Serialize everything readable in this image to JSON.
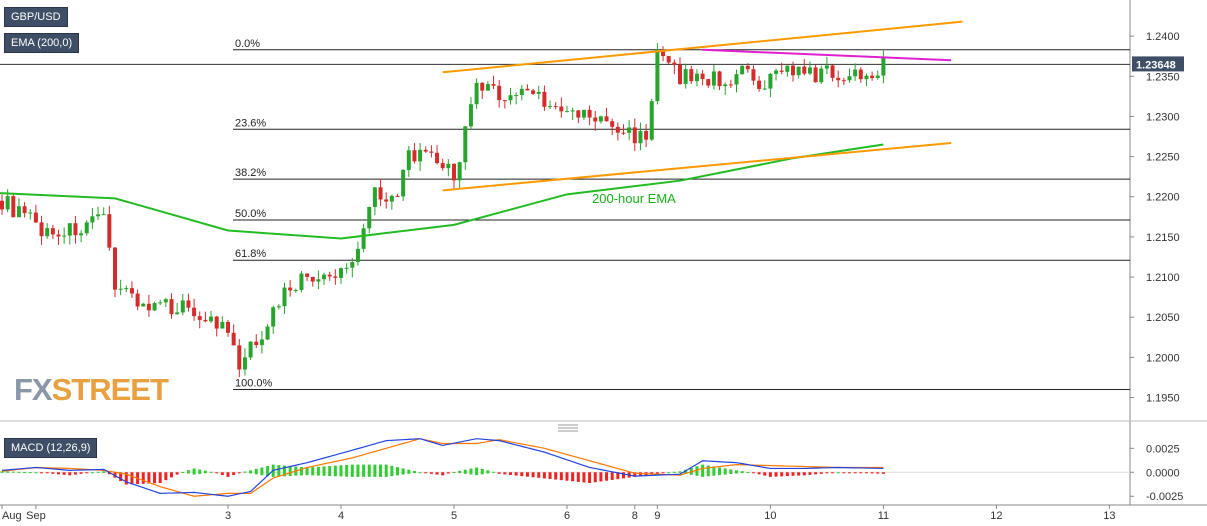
{
  "symbol_label": "GBP/USD",
  "indicator_label": "EMA (200,0)",
  "macd_label": "MACD (12,26,9)",
  "watermark": {
    "part1": "FX",
    "part2": "STREET"
  },
  "annotation": "200-hour EMA",
  "current_price": "1.23648",
  "colors": {
    "bull": "#26a42c",
    "bear": "#d42b2b",
    "ema": "#22bb22",
    "channel": "#ff9900",
    "resistance": "#e020d0",
    "macd_line": "#2244dd",
    "signal_line": "#ff7700",
    "hist_pos": "#33cc33",
    "hist_neg": "#ee2222"
  },
  "x_axis_labels": [
    "Aug",
    "Sep",
    "3",
    "4",
    "5",
    "6",
    "8",
    "9",
    "10",
    "11",
    "12",
    "13"
  ],
  "price_axis_labels": [
    "1.2400",
    "1.2350",
    "1.2300",
    "1.2250",
    "1.2200",
    "1.2150",
    "1.2100",
    "1.2050",
    "1.2000",
    "1.1950"
  ],
  "macd_axis_labels": [
    "0.0025",
    "0.0000",
    "-0.0025"
  ],
  "fib_levels": [
    {
      "label": "0.0%",
      "price": 1.2383
    },
    {
      "label": "23.6%",
      "price": 1.2284
    },
    {
      "label": "38.2%",
      "price": 1.2222
    },
    {
      "label": "50.0%",
      "price": 1.2171
    },
    {
      "label": "61.8%",
      "price": 1.2121
    },
    {
      "label": "100.0%",
      "price": 1.196
    }
  ],
  "chart_data": {
    "type": "candlestick",
    "title": "GBP/USD",
    "ylim": [
      1.1922,
      1.2445
    ],
    "macd_ylim": [
      -0.0031,
      0.0042
    ],
    "x_ticks": [
      {
        "label": "Aug",
        "x": 0
      },
      {
        "label": "Sep",
        "x": 3
      },
      {
        "label": "3",
        "x": 20
      },
      {
        "label": "4",
        "x": 30
      },
      {
        "label": "5",
        "x": 40
      },
      {
        "label": "6",
        "x": 50
      },
      {
        "label": "8",
        "x": 56
      },
      {
        "label": "9",
        "x": 58
      },
      {
        "label": "10",
        "x": 68
      },
      {
        "label": "11",
        "x": 78
      },
      {
        "label": "12",
        "x": 88
      },
      {
        "label": "13",
        "x": 98
      }
    ],
    "ohlc_anchors": [
      [
        0,
        1.2195
      ],
      [
        4,
        1.2155
      ],
      [
        7,
        1.216
      ],
      [
        9,
        1.217
      ],
      [
        10,
        1.2095
      ],
      [
        13,
        1.206
      ],
      [
        16,
        1.2065
      ],
      [
        18,
        1.205
      ],
      [
        20,
        1.203
      ],
      [
        21,
        1.1985
      ],
      [
        22,
        1.201
      ],
      [
        24,
        1.2055
      ],
      [
        25,
        1.2085
      ],
      [
        27,
        1.21
      ],
      [
        29,
        1.2095
      ],
      [
        31,
        1.212
      ],
      [
        32,
        1.2165
      ],
      [
        33,
        1.221
      ],
      [
        35,
        1.2195
      ],
      [
        36,
        1.2255
      ],
      [
        39,
        1.224
      ],
      [
        40,
        1.2225
      ],
      [
        42,
        1.2335
      ],
      [
        45,
        1.2325
      ],
      [
        47,
        1.2335
      ],
      [
        49,
        1.2305
      ],
      [
        52,
        1.23
      ],
      [
        55,
        1.228
      ],
      [
        57,
        1.2275
      ],
      [
        58,
        1.2375
      ],
      [
        60,
        1.235
      ],
      [
        62,
        1.2348
      ],
      [
        64,
        1.2345
      ],
      [
        66,
        1.2355
      ],
      [
        67,
        1.2325
      ],
      [
        69,
        1.2365
      ],
      [
        71,
        1.235
      ],
      [
        73,
        1.2355
      ],
      [
        75,
        1.235
      ],
      [
        77,
        1.2358
      ],
      [
        78,
        1.2365
      ]
    ],
    "ema_200": [
      [
        -1,
        1.2205
      ],
      [
        10,
        1.2198
      ],
      [
        20,
        1.2158
      ],
      [
        30,
        1.2148
      ],
      [
        40,
        1.2165
      ],
      [
        50,
        1.2203
      ],
      [
        60,
        1.222
      ],
      [
        70,
        1.2248
      ],
      [
        78,
        1.2265
      ]
    ],
    "channel_upper": [
      [
        39,
        1.2355
      ],
      [
        85,
        1.2418
      ]
    ],
    "channel_lower": [
      [
        39,
        1.2208
      ],
      [
        84,
        1.2267
      ]
    ],
    "resistance_line": [
      [
        62,
        1.2383
      ],
      [
        84,
        1.237
      ]
    ],
    "macd_anchors": [
      [
        0,
        0.0002,
        0.0001
      ],
      [
        3,
        0.0005,
        0.0005
      ],
      [
        6,
        0.0002,
        0.0004
      ],
      [
        9,
        0.0003,
        0.0002
      ],
      [
        11,
        -0.001,
        -0.0002
      ],
      [
        14,
        -0.0022,
        -0.0015
      ],
      [
        17,
        -0.0021,
        -0.0025
      ],
      [
        20,
        -0.0025,
        -0.0022
      ],
      [
        22,
        -0.002,
        -0.0022
      ],
      [
        24,
        0.0002,
        -0.0006
      ],
      [
        27,
        0.001,
        0.0005
      ],
      [
        31,
        0.0023,
        0.0015
      ],
      [
        34,
        0.0033,
        0.0025
      ],
      [
        37,
        0.0035,
        0.0035
      ],
      [
        39,
        0.0028,
        0.003
      ],
      [
        42,
        0.0035,
        0.003
      ],
      [
        44,
        0.0033,
        0.0034
      ],
      [
        48,
        0.0021,
        0.0025
      ],
      [
        52,
        0.0005,
        0.0012
      ],
      [
        56,
        -0.0004,
        -0.0001
      ],
      [
        60,
        -0.0002,
        -0.0003
      ],
      [
        62,
        0.0012,
        0.0004
      ],
      [
        65,
        0.001,
        0.0008
      ],
      [
        68,
        0.0004,
        0.0007
      ],
      [
        71,
        0.0004,
        0.0006
      ],
      [
        74,
        0.0005,
        0.0005
      ],
      [
        78,
        0.0004,
        0.0005
      ]
    ]
  }
}
